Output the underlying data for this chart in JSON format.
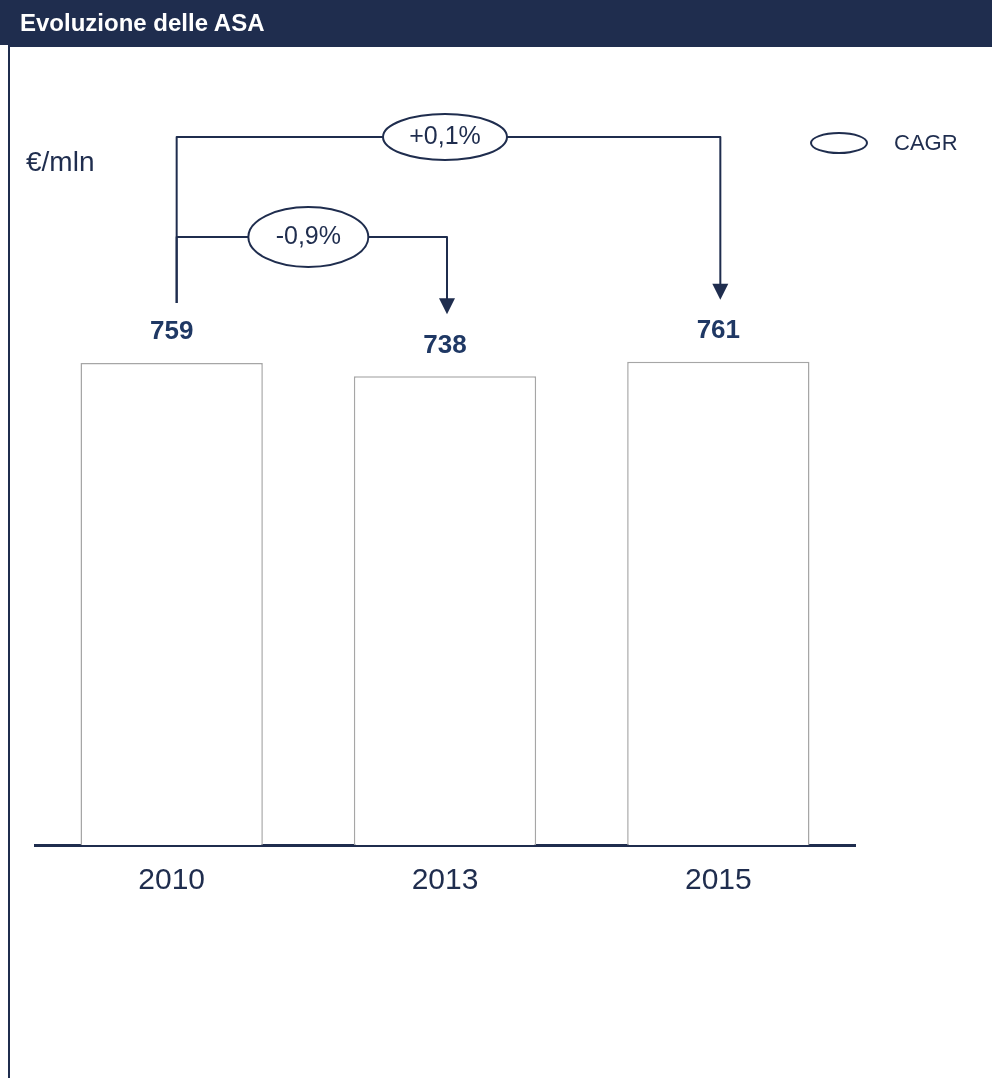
{
  "chart_data": {
    "type": "bar",
    "title": "Evoluzione delle ASA",
    "categories": [
      "2010",
      "2013",
      "2015"
    ],
    "values": [
      759,
      738,
      761
    ],
    "color": "#ffffff",
    "data_labels": true,
    "grid": false,
    "legend": false,
    "annotations": [
      "+0,1%",
      "-0,9%",
      "CAGR",
      "€/mln"
    ]
  }
}
